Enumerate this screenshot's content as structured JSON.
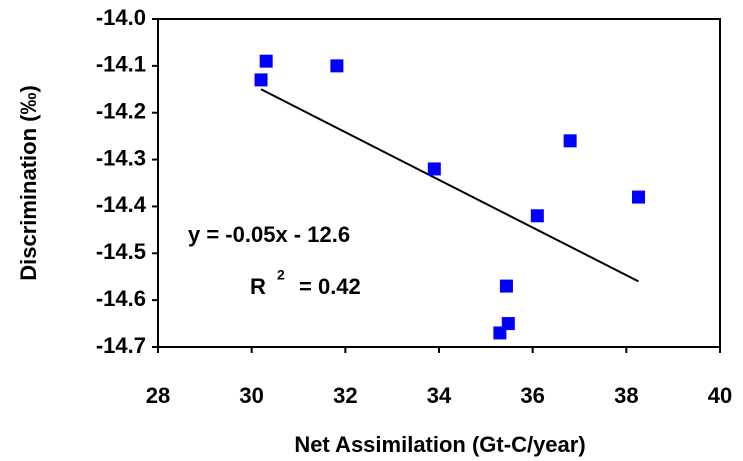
{
  "chart_data": {
    "type": "scatter",
    "x_label": "Net Assimilation (Gt-C/year)",
    "y_label": "Discrimination (‰)",
    "series": [
      {
        "color": "#0000ff",
        "x": [
          30.2,
          30.31,
          31.82,
          33.9,
          36.1,
          36.8,
          38.26,
          35.44,
          35.48,
          35.3
        ],
        "values": [
          -14.13,
          -14.09,
          -14.1,
          -14.32,
          -14.42,
          -14.26,
          -14.38,
          -14.57,
          -14.65,
          -14.67
        ]
      }
    ],
    "trendline": {
      "x": [
        30.2,
        38.26
      ],
      "values": [
        -14.15,
        -14.56
      ],
      "color": "#000000"
    },
    "annotations": [
      "y = -0.05x - 12.6",
      "R",
      "2",
      "= 0.42"
    ],
    "xlim": [
      28,
      40
    ],
    "xticks": [
      28,
      30,
      32,
      34,
      36,
      38,
      40
    ],
    "ylim": [
      -14.7,
      -14.0
    ],
    "yticks": [
      {
        "value": -14.0,
        "label": "-14.0"
      },
      -14.1,
      -14.2,
      -14.3,
      -14.4,
      -14.5,
      -14.6,
      -14.7
    ]
  }
}
